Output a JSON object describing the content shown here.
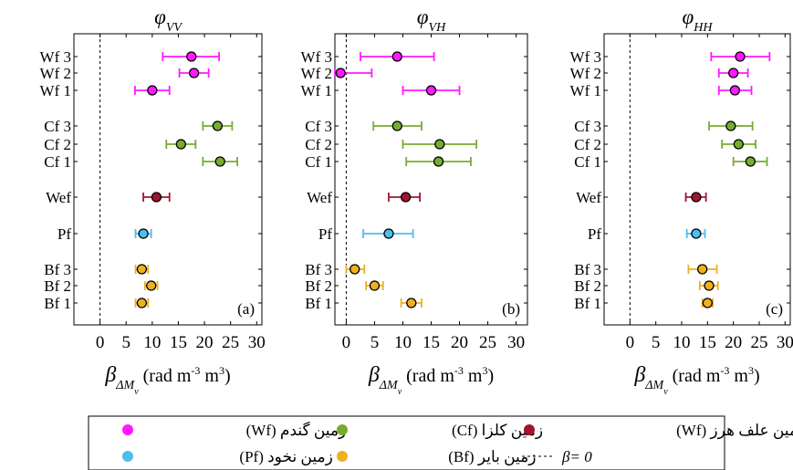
{
  "chart_data": [
    {
      "type": "scatter",
      "panel_label": "(a)",
      "title": {
        "main": "φ",
        "sub": "VV"
      },
      "categories": [
        "Wf 3",
        "Wf 2",
        "Wf 1",
        "Cf 3",
        "Cf 2",
        "Cf 1",
        "Wef",
        "Pf",
        "Bf 3",
        "Bf 2",
        "Bf 1"
      ],
      "xlim": [
        -5,
        31
      ],
      "xticks": [
        0,
        5,
        10,
        15,
        20,
        25,
        30
      ],
      "zero_line": 0,
      "points": [
        {
          "category": "Wf 3",
          "group": "wheat",
          "value": 17.5,
          "low": 12.0,
          "high": 22.8
        },
        {
          "category": "Wf 2",
          "group": "wheat",
          "value": 18.0,
          "low": 15.2,
          "high": 20.8
        },
        {
          "category": "Wf 1",
          "group": "wheat",
          "value": 10.0,
          "low": 6.7,
          "high": 13.3
        },
        {
          "category": "Cf 3",
          "group": "canola",
          "value": 22.5,
          "low": 19.7,
          "high": 25.3
        },
        {
          "category": "Cf 2",
          "group": "canola",
          "value": 15.5,
          "low": 12.7,
          "high": 18.3
        },
        {
          "category": "Cf 1",
          "group": "canola",
          "value": 23.0,
          "low": 19.7,
          "high": 26.3
        },
        {
          "category": "Wef",
          "group": "fodder",
          "value": 10.8,
          "low": 8.3,
          "high": 13.3
        },
        {
          "category": "Pf",
          "group": "pea",
          "value": 8.3,
          "low": 6.8,
          "high": 9.8
        },
        {
          "category": "Bf 3",
          "group": "fallow",
          "value": 8.0,
          "low": 6.8,
          "high": 9.2
        },
        {
          "category": "Bf 2",
          "group": "fallow",
          "value": 9.8,
          "low": 8.6,
          "high": 11.0
        },
        {
          "category": "Bf 1",
          "group": "fallow",
          "value": 8.0,
          "low": 6.8,
          "high": 9.2
        }
      ]
    },
    {
      "type": "scatter",
      "panel_label": "(b)",
      "title": {
        "main": "φ",
        "sub": "VH"
      },
      "categories": [
        "Wf 3",
        "Wf 2",
        "Wf 1",
        "Cf 3",
        "Cf 2",
        "Cf 1",
        "Wef",
        "Pf",
        "Bf 3",
        "Bf 2",
        "Bf 1"
      ],
      "xlim": [
        -2,
        32
      ],
      "xticks": [
        0,
        5,
        10,
        15,
        20,
        25,
        30
      ],
      "zero_line": 0,
      "points": [
        {
          "category": "Wf 3",
          "group": "wheat",
          "value": 9.0,
          "low": 2.5,
          "high": 15.5
        },
        {
          "category": "Wf 2",
          "group": "wheat",
          "value": -1.0,
          "low": -2.0,
          "high": 4.5
        },
        {
          "category": "Wf 1",
          "group": "wheat",
          "value": 15.0,
          "low": 10.0,
          "high": 20.0
        },
        {
          "category": "Cf 3",
          "group": "canola",
          "value": 9.0,
          "low": 4.8,
          "high": 13.3
        },
        {
          "category": "Cf 2",
          "group": "canola",
          "value": 16.5,
          "low": 10.0,
          "high": 23.0
        },
        {
          "category": "Cf 1",
          "group": "canola",
          "value": 16.3,
          "low": 10.6,
          "high": 22.0
        },
        {
          "category": "Wef",
          "group": "fodder",
          "value": 10.5,
          "low": 7.5,
          "high": 13.0
        },
        {
          "category": "Pf",
          "group": "pea",
          "value": 7.5,
          "low": 3.0,
          "high": 11.8
        },
        {
          "category": "Bf 3",
          "group": "fallow",
          "value": 1.5,
          "low": 0.0,
          "high": 3.2
        },
        {
          "category": "Bf 2",
          "group": "fallow",
          "value": 5.0,
          "low": 3.5,
          "high": 6.5
        },
        {
          "category": "Bf 1",
          "group": "fallow",
          "value": 11.5,
          "low": 9.7,
          "high": 13.3
        }
      ]
    },
    {
      "type": "scatter",
      "panel_label": "(c)",
      "title": {
        "main": "φ",
        "sub": "HH"
      },
      "categories": [
        "Wf 3",
        "Wf 2",
        "Wf 1",
        "Cf 3",
        "Cf 2",
        "Cf 1",
        "Wef",
        "Pf",
        "Bf 3",
        "Bf 2",
        "Bf 1"
      ],
      "xlim": [
        -5,
        31
      ],
      "xticks": [
        0,
        5,
        10,
        15,
        20,
        25,
        30
      ],
      "zero_line": 0,
      "points": [
        {
          "category": "Wf 3",
          "group": "wheat",
          "value": 21.3,
          "low": 15.7,
          "high": 27.0
        },
        {
          "category": "Wf 2",
          "group": "wheat",
          "value": 20.0,
          "low": 17.2,
          "high": 22.8
        },
        {
          "category": "Wf 1",
          "group": "wheat",
          "value": 20.3,
          "low": 17.2,
          "high": 23.5
        },
        {
          "category": "Cf 3",
          "group": "canola",
          "value": 19.5,
          "low": 15.3,
          "high": 23.7
        },
        {
          "category": "Cf 2",
          "group": "canola",
          "value": 21.0,
          "low": 17.8,
          "high": 24.3
        },
        {
          "category": "Cf 1",
          "group": "canola",
          "value": 23.3,
          "low": 20.0,
          "high": 26.5
        },
        {
          "category": "Wef",
          "group": "fodder",
          "value": 12.8,
          "low": 10.8,
          "high": 14.7
        },
        {
          "category": "Pf",
          "group": "pea",
          "value": 12.8,
          "low": 11.0,
          "high": 14.5
        },
        {
          "category": "Bf 3",
          "group": "fallow",
          "value": 14.0,
          "low": 11.3,
          "high": 16.8
        },
        {
          "category": "Bf 2",
          "group": "fallow",
          "value": 15.3,
          "low": 13.5,
          "high": 17.0
        },
        {
          "category": "Bf 1",
          "group": "fallow",
          "value": 15.0,
          "low": 14.0,
          "high": 16.0
        }
      ]
    }
  ],
  "xlabel": {
    "symbol": "β",
    "sub1": "ΔM",
    "sub2": "v",
    "unit_a": "(rad m",
    "exp1": "-3",
    "unit_b": " m",
    "exp2": "3",
    "unit_c": ")"
  },
  "groups": {
    "wheat": {
      "color": "#ff19ff"
    },
    "canola": {
      "color": "#77ac30"
    },
    "fodder": {
      "color": "#a2142f"
    },
    "pea": {
      "color": "#4dbeee"
    },
    "fallow": {
      "color": "#edb120"
    }
  },
  "legend": {
    "entries": [
      {
        "group": "wheat",
        "label": "زمین گندم (Wf)"
      },
      {
        "group": "canola",
        "label": "زمین کلزا (Cf)"
      },
      {
        "group": "fodder",
        "label": "زمین علف هرز (Wf)"
      },
      {
        "group": "pea",
        "label": "زمین نخود (Pf)"
      },
      {
        "group": "fallow",
        "label": "زمین بایر (Bf)"
      },
      {
        "group": "zero",
        "label": "β= 0"
      }
    ]
  }
}
